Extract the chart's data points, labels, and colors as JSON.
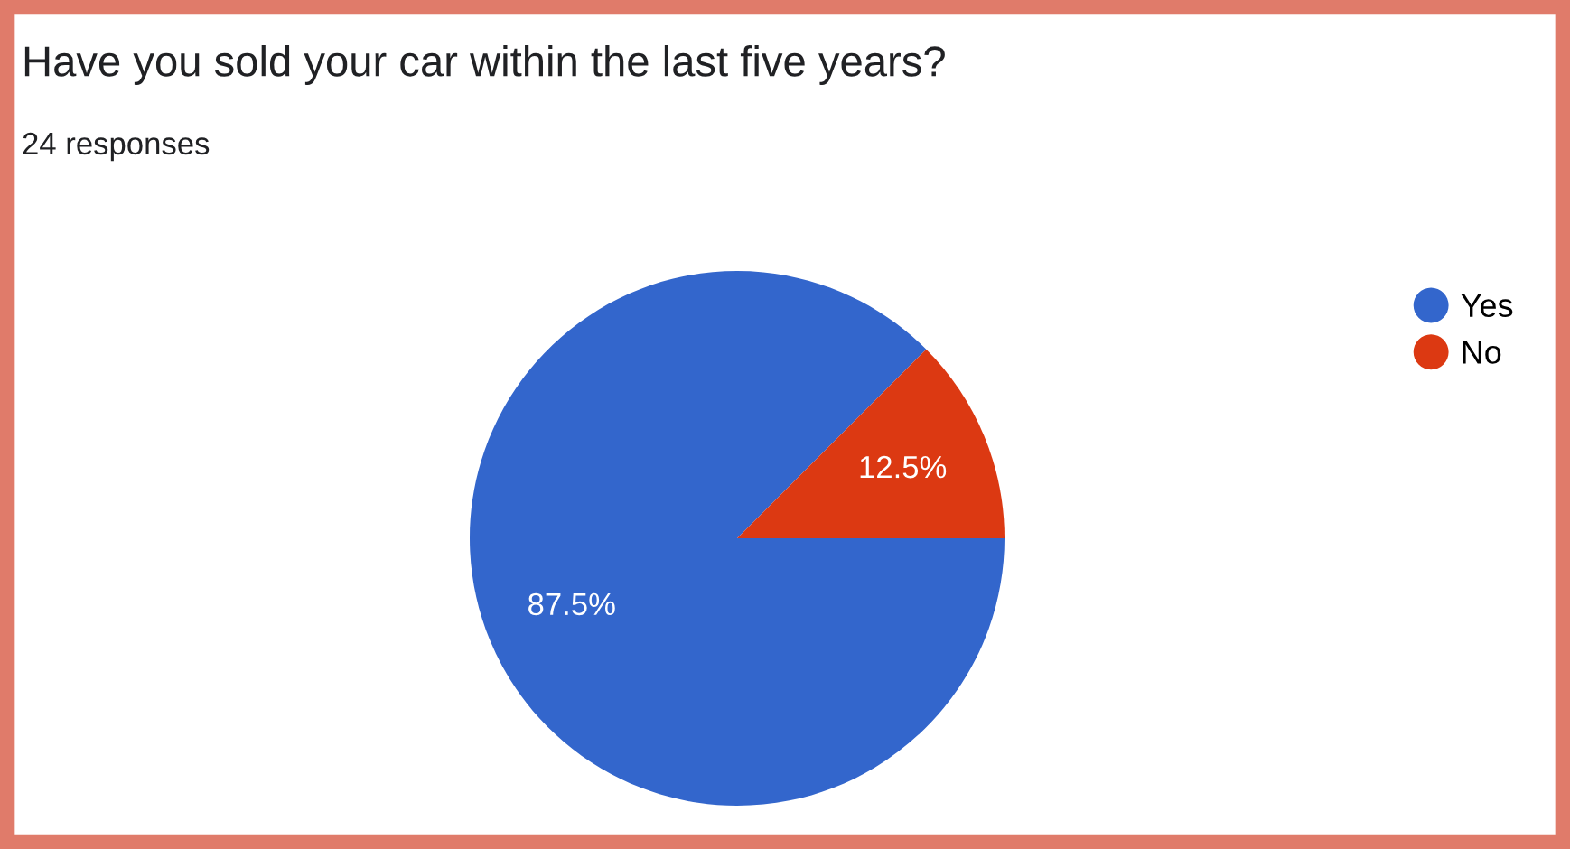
{
  "chart_data": {
    "type": "pie",
    "title": "Have you sold your car within the last five years?",
    "subtitle": "24 responses",
    "categories": [
      "Yes",
      "No"
    ],
    "values": [
      87.5,
      12.5
    ],
    "colors": [
      "#3366cc",
      "#dc3912"
    ],
    "value_labels": [
      "87.5%",
      "12.5%"
    ],
    "legend": "top right"
  }
}
